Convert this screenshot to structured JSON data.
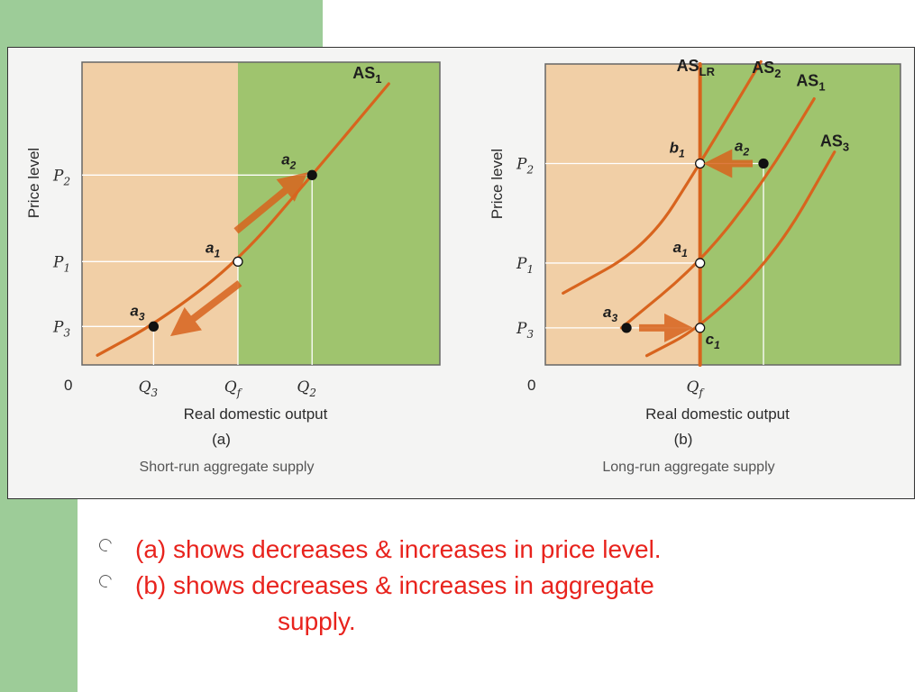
{
  "slide": {
    "bullets": [
      {
        "text": "(a) shows decreases & increases in price level.",
        "continuation": ""
      },
      {
        "text": "(b) shows decreases & increases in aggregate",
        "continuation": "supply."
      }
    ]
  },
  "colors": {
    "left_region": "#f1cfa6",
    "right_region": "#9fc46e",
    "curve": "#d8641e",
    "grid": "#ffffff",
    "bullet_text": "#e8231d"
  },
  "chart_data": [
    {
      "type": "line",
      "panel": "(a)",
      "caption": "Short-run aggregate supply",
      "xlabel": "Real domestic output",
      "ylabel": "Price level",
      "origin_label": "0",
      "x_ticks": [
        {
          "main": "Q",
          "sub": "3"
        },
        {
          "main": "Q",
          "sub": "f"
        },
        {
          "main": "Q",
          "sub": "2"
        }
      ],
      "y_ticks": [
        {
          "main": "P",
          "sub": "2"
        },
        {
          "main": "P",
          "sub": "1"
        },
        {
          "main": "P",
          "sub": "3"
        }
      ],
      "series": [
        {
          "name": "AS",
          "sub": "1",
          "x": [
            0.6,
            3.0,
            6.1,
            9.0,
            12.0
          ],
          "y": [
            0.4,
            1.8,
            4.3,
            7.9,
            11.7
          ]
        }
      ],
      "points": [
        {
          "name": "a",
          "sub": "1",
          "x": 6.1,
          "y": 4.3,
          "hollow": true
        },
        {
          "name": "a",
          "sub": "2",
          "x": 9.0,
          "y": 7.9,
          "hollow": false
        },
        {
          "name": "a",
          "sub": "3",
          "x": 2.8,
          "y": 1.6,
          "hollow": false
        }
      ],
      "xlim": [
        0,
        14
      ],
      "ylim": [
        0,
        12.6
      ]
    },
    {
      "type": "line",
      "panel": "(b)",
      "caption": "Long-run aggregate supply",
      "xlabel": "Real domestic output",
      "ylabel": "Price level",
      "origin_label": "0",
      "x_ticks": [
        {
          "main": "Q",
          "sub": "f"
        }
      ],
      "y_ticks": [
        {
          "main": "P",
          "sub": "2"
        },
        {
          "main": "P",
          "sub": "1"
        },
        {
          "main": "P",
          "sub": "3"
        }
      ],
      "series": [
        {
          "name": "AS",
          "sub": "2",
          "x": [
            0.7,
            4.0,
            6.1,
            8.5
          ],
          "y": [
            3.1,
            5.1,
            8.7,
            13.1
          ]
        },
        {
          "name": "AS",
          "sub": "1",
          "x": [
            3.0,
            6.1,
            8.6,
            10.6
          ],
          "y": [
            1.6,
            4.4,
            7.9,
            11.5
          ]
        },
        {
          "name": "AS",
          "sub": "3",
          "x": [
            4.0,
            6.1,
            9.1,
            11.4
          ],
          "y": [
            0.4,
            1.6,
            4.8,
            9.2
          ]
        },
        {
          "name": "AS",
          "sub": "LR",
          "x": [
            6.1,
            6.1
          ],
          "y": [
            0,
            13
          ]
        }
      ],
      "points": [
        {
          "name": "b",
          "sub": "1",
          "x": 6.1,
          "y": 8.7,
          "hollow": true
        },
        {
          "name": "a",
          "sub": "2",
          "x": 8.6,
          "y": 8.7,
          "hollow": false
        },
        {
          "name": "a",
          "sub": "1",
          "x": 6.1,
          "y": 4.4,
          "hollow": true
        },
        {
          "name": "a",
          "sub": "3",
          "x": 3.2,
          "y": 1.6,
          "hollow": false
        },
        {
          "name": "c",
          "sub": "1",
          "x": 6.1,
          "y": 1.6,
          "hollow": true
        }
      ],
      "xlim": [
        0,
        14
      ],
      "ylim": [
        0,
        13
      ]
    }
  ]
}
